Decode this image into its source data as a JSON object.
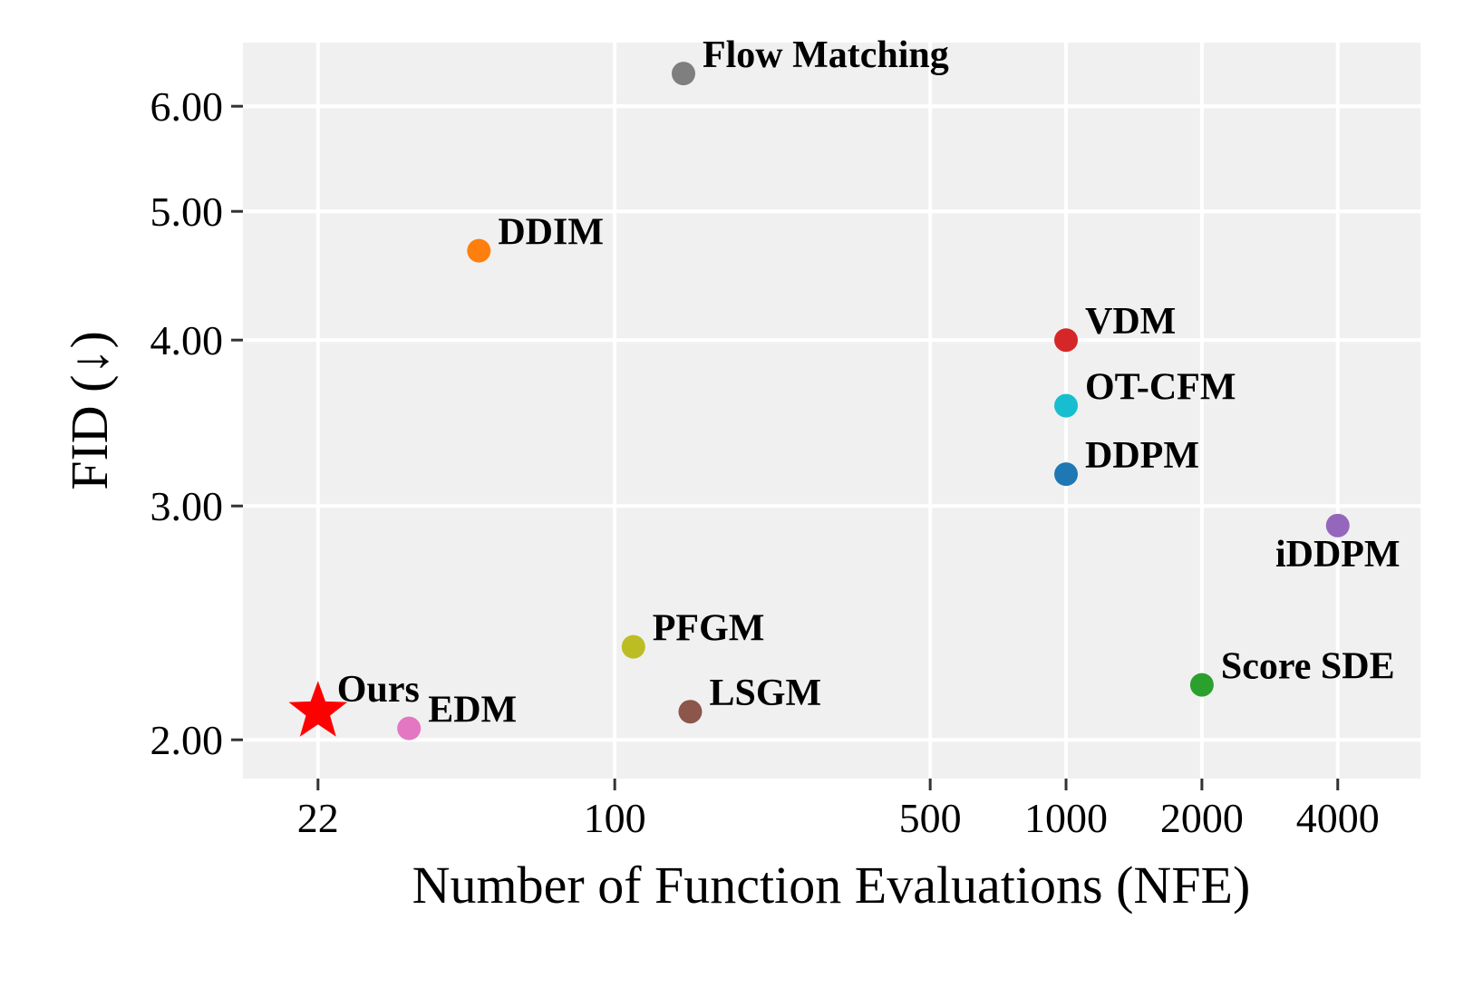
{
  "chart_data": {
    "type": "scatter",
    "xlabel": "Number of Function Evaluations (NFE)",
    "ylabel": "FID (↓)",
    "x_scale": "log",
    "y_scale": "log",
    "xlim": [
      15,
      6100
    ],
    "ylim": [
      1.87,
      6.7
    ],
    "x_ticks": [
      {
        "value": 22,
        "label": "22"
      },
      {
        "value": 100,
        "label": "100"
      },
      {
        "value": 500,
        "label": "500"
      },
      {
        "value": 1000,
        "label": "1000"
      },
      {
        "value": 2000,
        "label": "2000"
      },
      {
        "value": 4000,
        "label": "4000"
      }
    ],
    "y_ticks": [
      {
        "value": 2.0,
        "label": "2.00"
      },
      {
        "value": 3.0,
        "label": "3.00"
      },
      {
        "value": 4.0,
        "label": "4.00"
      },
      {
        "value": 5.0,
        "label": "5.00"
      },
      {
        "value": 6.0,
        "label": "6.00"
      }
    ],
    "grid": true,
    "legend": "none",
    "colors": {
      "panel": "#f0f0f0",
      "grid": "#ffffff"
    },
    "points": [
      {
        "name": "Flow Matching",
        "x": 142,
        "y": 6.35,
        "color": "#7f7f7f",
        "marker": "circle",
        "label_pos": "right"
      },
      {
        "name": "DDIM",
        "x": 50,
        "y": 4.67,
        "color": "#ff7f0e",
        "marker": "circle",
        "label_pos": "right"
      },
      {
        "name": "VDM",
        "x": 1000,
        "y": 4.0,
        "color": "#d62728",
        "marker": "circle",
        "label_pos": "right"
      },
      {
        "name": "OT-CFM",
        "x": 1000,
        "y": 3.57,
        "color": "#17becf",
        "marker": "circle",
        "label_pos": "right"
      },
      {
        "name": "DDPM",
        "x": 1000,
        "y": 3.17,
        "color": "#1f77b4",
        "marker": "circle",
        "label_pos": "right"
      },
      {
        "name": "iDDPM",
        "x": 4000,
        "y": 2.9,
        "color": "#9467bd",
        "marker": "circle",
        "label_pos": "below"
      },
      {
        "name": "PFGM",
        "x": 110,
        "y": 2.35,
        "color": "#bcbd22",
        "marker": "circle",
        "label_pos": "right"
      },
      {
        "name": "Score SDE",
        "x": 2000,
        "y": 2.2,
        "color": "#2ca02c",
        "marker": "circle",
        "label_pos": "right"
      },
      {
        "name": "LSGM",
        "x": 147,
        "y": 2.1,
        "color": "#8c564b",
        "marker": "circle",
        "label_pos": "right"
      },
      {
        "name": "Ours",
        "x": 22,
        "y": 2.1,
        "color": "#ff0000",
        "marker": "star",
        "label_pos": "right"
      },
      {
        "name": "EDM",
        "x": 35,
        "y": 2.04,
        "color": "#e377c2",
        "marker": "circle",
        "label_pos": "right"
      }
    ]
  }
}
